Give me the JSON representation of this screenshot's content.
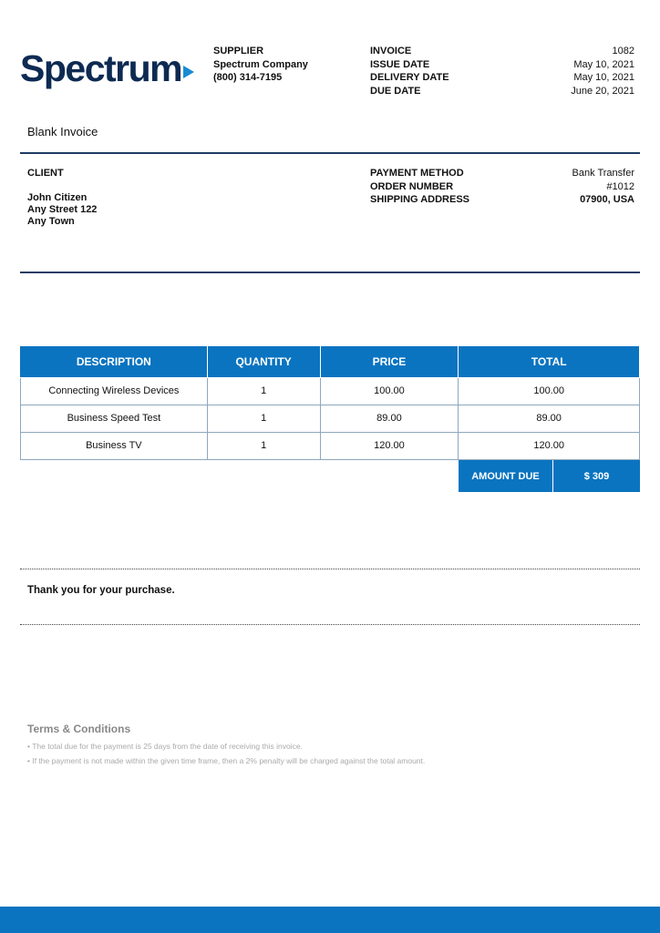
{
  "logo": {
    "text": "Spectrum"
  },
  "supplier": {
    "label": "SUPPLIER",
    "name": "Spectrum Company",
    "phone": "(800) 314-7195"
  },
  "meta": [
    {
      "label": "INVOICE",
      "value": "1082"
    },
    {
      "label": "ISSUE DATE",
      "value": "May 10, 2021"
    },
    {
      "label": "DELIVERY DATE",
      "value": "May 10, 2021"
    },
    {
      "label": "DUE DATE",
      "value": "June 20, 2021"
    }
  ],
  "title": "Blank Invoice",
  "client": {
    "label": "CLIENT",
    "name": "John Citizen",
    "street": "Any Street 122",
    "town": "Any Town"
  },
  "payment": [
    {
      "label": "PAYMENT METHOD",
      "value": "Bank Transfer"
    },
    {
      "label": "ORDER NUMBER",
      "value": "#1012"
    },
    {
      "label": "SHIPPING ADDRESS",
      "value": "07900, USA"
    }
  ],
  "table": {
    "headers": [
      "DESCRIPTION",
      "QUANTITY",
      "PRICE",
      "TOTAL"
    ],
    "rows": [
      [
        "Connecting Wireless Devices",
        "1",
        "100.00",
        "100.00"
      ],
      [
        "Business Speed Test",
        "1",
        "89.00",
        "89.00"
      ],
      [
        "Business TV",
        "1",
        "120.00",
        "120.00"
      ]
    ]
  },
  "amount_due": {
    "label": "AMOUNT DUE",
    "value": "$ 309"
  },
  "thanks": "Thank you for your purchase.",
  "terms": {
    "title": "Terms & Conditions",
    "items": [
      "The total due for the payment is 25 days from the date of receiving this invoice.",
      "If the payment is not made within the given time frame, then a 2% penalty will be charged against the total amount."
    ]
  },
  "colors": {
    "brand": "#0a74c0",
    "navy": "#0d2a52"
  }
}
